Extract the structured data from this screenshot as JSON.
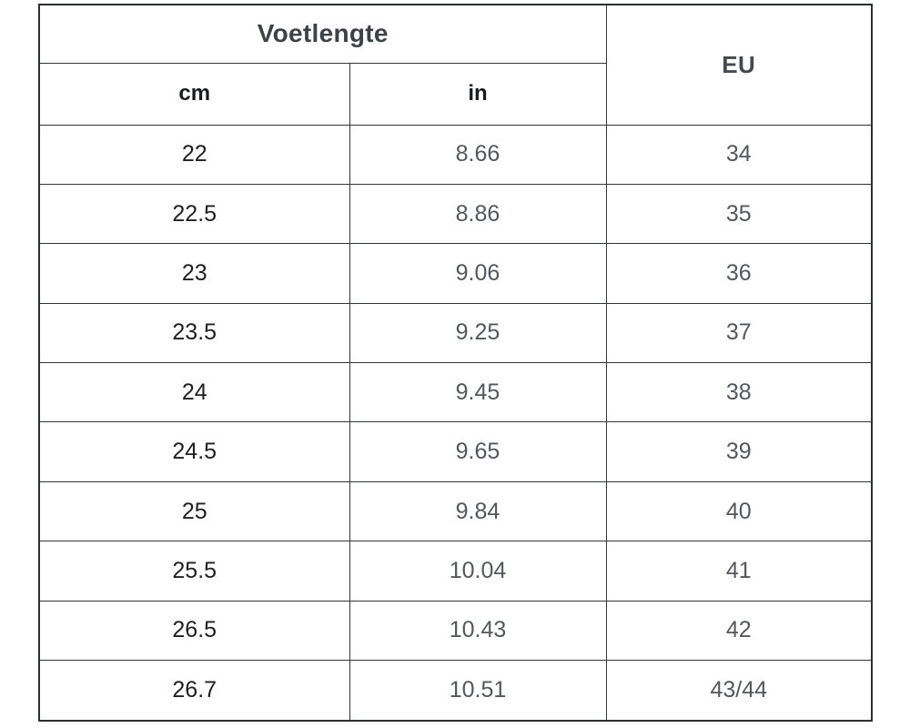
{
  "table": {
    "header": {
      "group_label": "Voetlengte",
      "eu_label": "EU",
      "sub_cm_label": "cm",
      "sub_in_label": "in"
    },
    "columns": [
      "cm",
      "in",
      "eu"
    ],
    "rows": [
      {
        "cm": "22",
        "in": "8.66",
        "eu": "34"
      },
      {
        "cm": "22.5",
        "in": "8.86",
        "eu": "35"
      },
      {
        "cm": "23",
        "in": "9.06",
        "eu": "36"
      },
      {
        "cm": "23.5",
        "in": "9.25",
        "eu": "37"
      },
      {
        "cm": "24",
        "in": "9.45",
        "eu": "38"
      },
      {
        "cm": "24.5",
        "in": "9.65",
        "eu": "39"
      },
      {
        "cm": "25",
        "in": "9.84",
        "eu": "40"
      },
      {
        "cm": "25.5",
        "in": "10.04",
        "eu": "41"
      },
      {
        "cm": "26.5",
        "in": "10.43",
        "eu": "42"
      },
      {
        "cm": "26.7",
        "in": "10.51",
        "eu": "43/44"
      }
    ],
    "colors": {
      "border": "#333639",
      "outer_border": "#2c2f32",
      "header_text": "#3e4247",
      "sub_header_text": "#1b1c1e",
      "cm_value_text": "#1f1f1f",
      "secondary_value_text": "#54575b",
      "background": "#ffffff"
    }
  }
}
